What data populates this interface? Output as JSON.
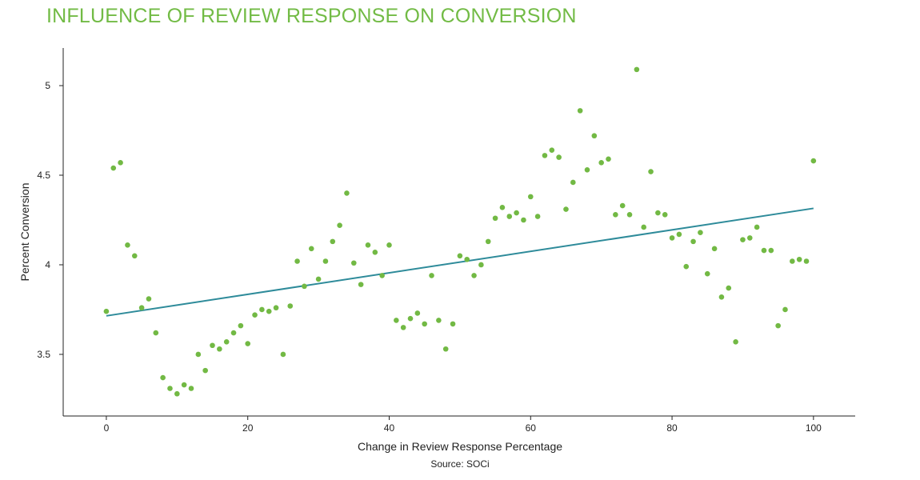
{
  "chart_data": {
    "type": "scatter",
    "title": "INFLUENCE OF REVIEW RESPONSE ON CONVERSION",
    "xlabel": "Change in Review Response Percentage",
    "ylabel": "Percent Conversion",
    "source": "Source: SOCi",
    "xlim": [
      -6.1,
      105.9
    ],
    "ylim": [
      3.156,
      5.21
    ],
    "xticks": [
      0,
      20,
      40,
      60,
      80,
      100
    ],
    "yticks": [
      3.5,
      4,
      4.5,
      5
    ],
    "xtick_labels": [
      "0",
      "20",
      "40",
      "60",
      "80",
      "100"
    ],
    "ytick_labels": [
      "3.5",
      "4",
      "4.5",
      "5"
    ],
    "grid": false,
    "colors": {
      "title": "#72bb45",
      "points": "#72b944",
      "trend": "#2e8b9a"
    },
    "series": [
      {
        "name": "Observations",
        "x": [
          0,
          1,
          2,
          3,
          4,
          5,
          6,
          7,
          8,
          9,
          10,
          11,
          12,
          13,
          14,
          15,
          16,
          17,
          18,
          19,
          20,
          21,
          22,
          23,
          24,
          25,
          26,
          27,
          28,
          29,
          30,
          31,
          32,
          33,
          34,
          35,
          36,
          37,
          38,
          39,
          40,
          41,
          42,
          43,
          44,
          45,
          46,
          47,
          48,
          49,
          50,
          51,
          52,
          53,
          54,
          55,
          56,
          57,
          58,
          59,
          60,
          61,
          62,
          63,
          64,
          65,
          66,
          67,
          68,
          69,
          70,
          71,
          72,
          73,
          74,
          75,
          76,
          77,
          78,
          79,
          80,
          81,
          82,
          83,
          84,
          85,
          86,
          87,
          88,
          89,
          90,
          91,
          92,
          93,
          94,
          95,
          96,
          97,
          98,
          99,
          100
        ],
        "y": [
          3.74,
          4.54,
          4.57,
          4.11,
          4.05,
          3.76,
          3.81,
          3.62,
          3.37,
          3.31,
          3.28,
          3.33,
          3.31,
          3.5,
          3.41,
          3.55,
          3.53,
          3.57,
          3.62,
          3.66,
          3.56,
          3.72,
          3.75,
          3.74,
          3.76,
          3.5,
          3.77,
          4.02,
          3.88,
          4.09,
          3.92,
          4.02,
          4.13,
          4.22,
          4.4,
          4.01,
          3.89,
          4.11,
          4.07,
          3.94,
          4.11,
          3.69,
          3.65,
          3.7,
          3.73,
          3.67,
          3.94,
          3.69,
          3.53,
          3.67,
          4.05,
          4.03,
          3.94,
          4.0,
          4.13,
          4.26,
          4.32,
          4.27,
          4.29,
          4.25,
          4.38,
          4.27,
          4.61,
          4.64,
          4.6,
          4.31,
          4.46,
          4.86,
          4.53,
          4.72,
          4.57,
          4.59,
          4.28,
          4.33,
          4.28,
          5.09,
          4.21,
          4.52,
          4.29,
          4.28,
          4.15,
          4.17,
          3.99,
          4.13,
          4.18,
          3.95,
          4.09,
          3.82,
          3.87,
          3.57,
          4.14,
          4.15,
          4.21,
          4.08,
          4.08,
          3.66,
          3.75,
          4.02,
          4.03,
          4.02,
          4.58
        ]
      },
      {
        "name": "Trend",
        "type": "line",
        "x": [
          0,
          100
        ],
        "y": [
          3.715,
          4.315
        ]
      }
    ]
  }
}
